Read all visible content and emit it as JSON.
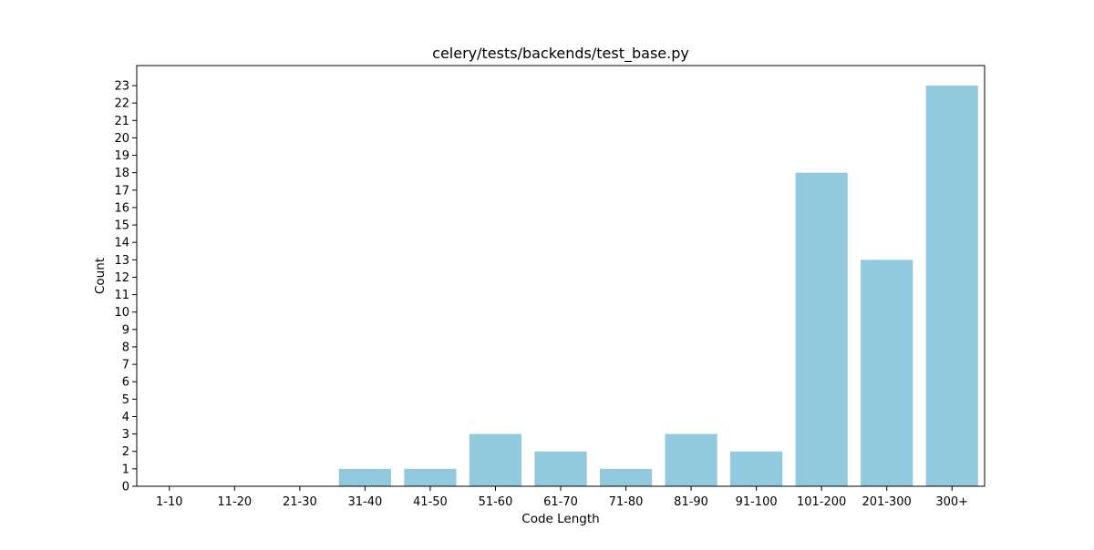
{
  "chart_data": {
    "type": "bar",
    "title": "celery/tests/backends/test_base.py",
    "xlabel": "Code Length",
    "ylabel": "Count",
    "categories": [
      "1-10",
      "11-20",
      "21-30",
      "31-40",
      "41-50",
      "51-60",
      "61-70",
      "71-80",
      "81-90",
      "91-100",
      "101-200",
      "201-300",
      "300+"
    ],
    "values": [
      0,
      0,
      0,
      1,
      1,
      3,
      2,
      1,
      3,
      2,
      18,
      13,
      23
    ],
    "ylim": [
      0,
      24.15
    ],
    "yticks": [
      0,
      1,
      2,
      3,
      4,
      5,
      6,
      7,
      8,
      9,
      10,
      11,
      12,
      13,
      14,
      15,
      16,
      17,
      18,
      19,
      20,
      21,
      22,
      23
    ],
    "bar_color": "#92c9df",
    "grid": false,
    "legend": "none"
  }
}
